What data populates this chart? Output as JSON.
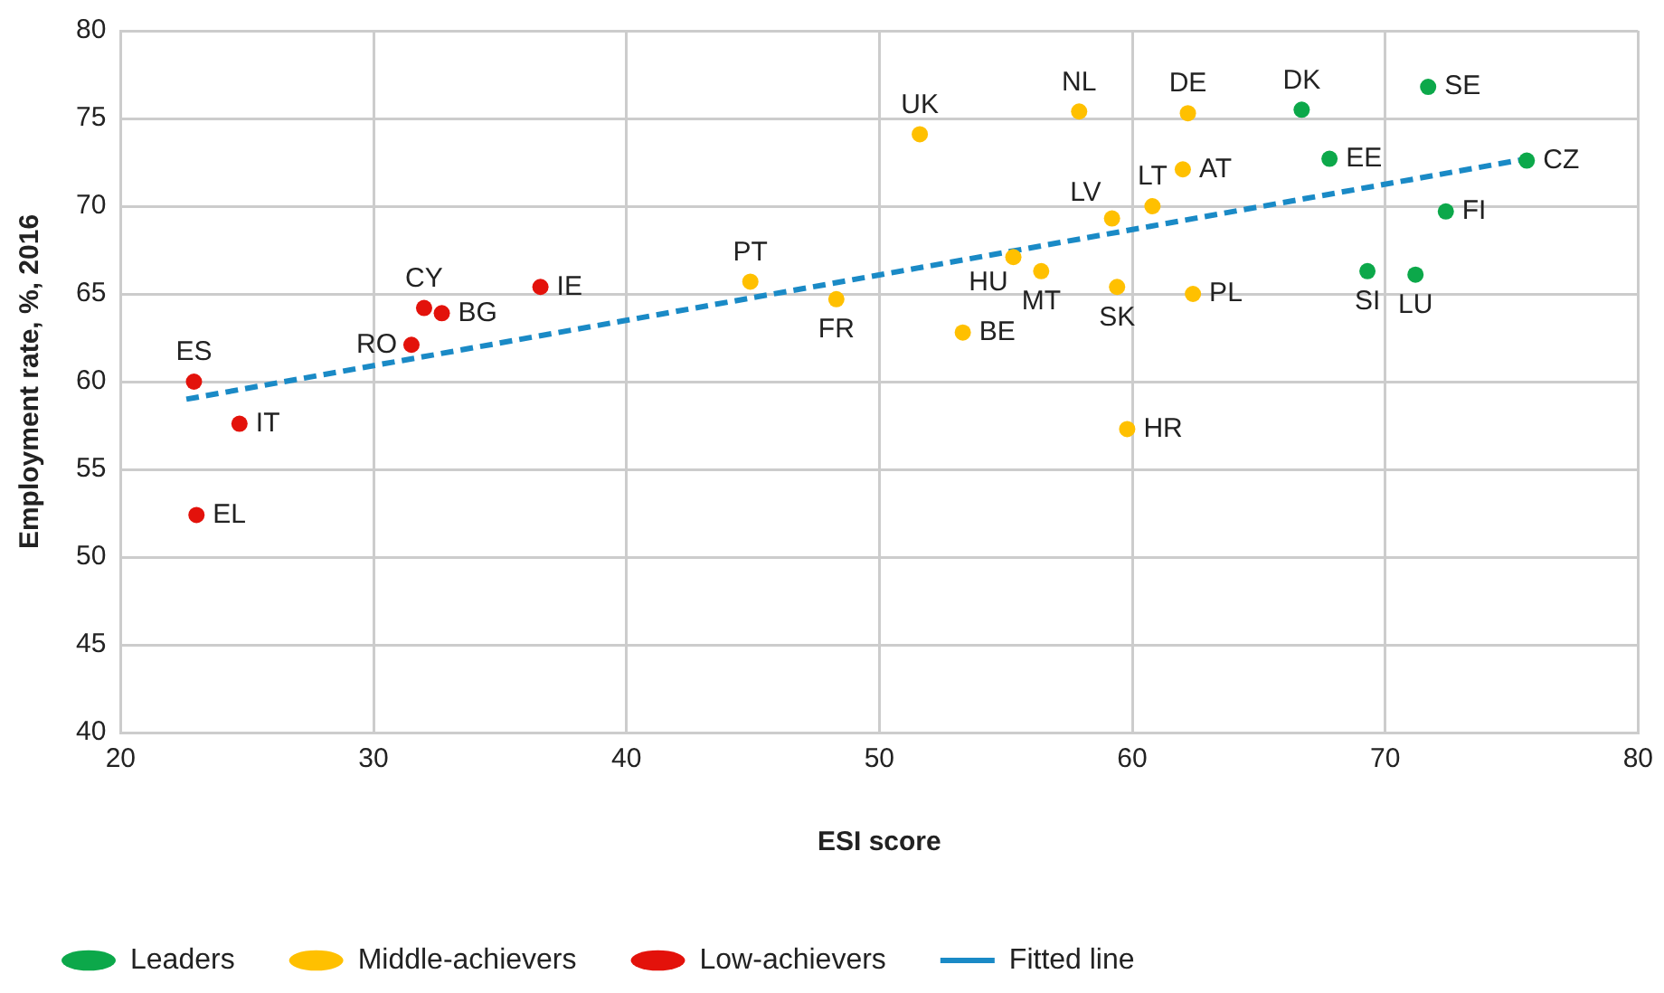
{
  "chart_data": {
    "type": "scatter",
    "xlabel": "ESI score",
    "ylabel": "Employment rate, %, 2016",
    "xlim": [
      20,
      80
    ],
    "xticks": [
      20,
      30,
      40,
      50,
      60,
      70,
      80
    ],
    "ylim": [
      40,
      80
    ],
    "yticks": [
      40,
      45,
      50,
      55,
      60,
      65,
      70,
      75,
      80
    ],
    "grid": true,
    "legend": "bottom",
    "marker": "circle",
    "series": [
      {
        "name": "Leaders",
        "color": "#0ca84a",
        "x": [
          66.7,
          71.7,
          67.8,
          75.6,
          72.4,
          69.3,
          71.2
        ],
        "values": [
          75.5,
          76.8,
          72.7,
          72.6,
          69.7,
          66.3,
          66.1
        ]
      },
      {
        "name": "Middle-achievers",
        "color": "#ffc000",
        "x": [
          51.6,
          57.9,
          62.2,
          62.0,
          60.8,
          59.2,
          55.3,
          56.4,
          59.4,
          62.4,
          53.3,
          59.8,
          44.9,
          48.3
        ],
        "values": [
          74.1,
          75.4,
          75.3,
          72.1,
          70.0,
          69.3,
          67.1,
          66.3,
          65.4,
          65.0,
          62.8,
          57.3,
          65.7,
          64.7
        ]
      },
      {
        "name": "Low-achievers",
        "color": "#e3120b",
        "x": [
          22.9,
          24.7,
          23.0,
          31.5,
          32.0,
          32.7,
          36.6
        ],
        "values": [
          60.0,
          57.6,
          52.4,
          62.1,
          64.2,
          63.9,
          65.4
        ]
      },
      {
        "name": "Fitted line",
        "type": "line",
        "color": "#1a8ac6",
        "line_style": "dashed",
        "marker": "none",
        "x": [
          22.6,
          75.6
        ],
        "values": [
          59.0,
          72.7
        ]
      }
    ],
    "annotations": [
      {
        "text": "DK",
        "x": 66.7,
        "y": 75.5
      },
      {
        "text": "SE",
        "x": 71.7,
        "y": 76.8
      },
      {
        "text": "EE",
        "x": 67.8,
        "y": 72.7
      },
      {
        "text": "CZ",
        "x": 75.6,
        "y": 72.6
      },
      {
        "text": "FI",
        "x": 72.4,
        "y": 69.7
      },
      {
        "text": "SI",
        "x": 69.3,
        "y": 66.3
      },
      {
        "text": "LU",
        "x": 71.2,
        "y": 66.1
      },
      {
        "text": "UK",
        "x": 51.6,
        "y": 74.1
      },
      {
        "text": "NL",
        "x": 57.9,
        "y": 75.4
      },
      {
        "text": "DE",
        "x": 62.2,
        "y": 75.3
      },
      {
        "text": "AT",
        "x": 62.0,
        "y": 72.1
      },
      {
        "text": "LT",
        "x": 60.8,
        "y": 70.0
      },
      {
        "text": "LV",
        "x": 59.2,
        "y": 69.3
      },
      {
        "text": "HU",
        "x": 55.3,
        "y": 67.1
      },
      {
        "text": "MT",
        "x": 56.4,
        "y": 66.3
      },
      {
        "text": "SK",
        "x": 59.4,
        "y": 65.4
      },
      {
        "text": "PL",
        "x": 62.4,
        "y": 65.0
      },
      {
        "text": "BE",
        "x": 53.3,
        "y": 62.8
      },
      {
        "text": "HR",
        "x": 59.8,
        "y": 57.3
      },
      {
        "text": "PT",
        "x": 44.9,
        "y": 65.7
      },
      {
        "text": "FR",
        "x": 48.3,
        "y": 64.7
      },
      {
        "text": "ES",
        "x": 22.9,
        "y": 60.0
      },
      {
        "text": "IT",
        "x": 24.7,
        "y": 57.6
      },
      {
        "text": "EL",
        "x": 23.0,
        "y": 52.4
      },
      {
        "text": "RO",
        "x": 31.5,
        "y": 62.1
      },
      {
        "text": "CY",
        "x": 32.0,
        "y": 64.2
      },
      {
        "text": "BG",
        "x": 32.7,
        "y": 63.9
      },
      {
        "text": "IE",
        "x": 36.6,
        "y": 65.4
      }
    ]
  }
}
